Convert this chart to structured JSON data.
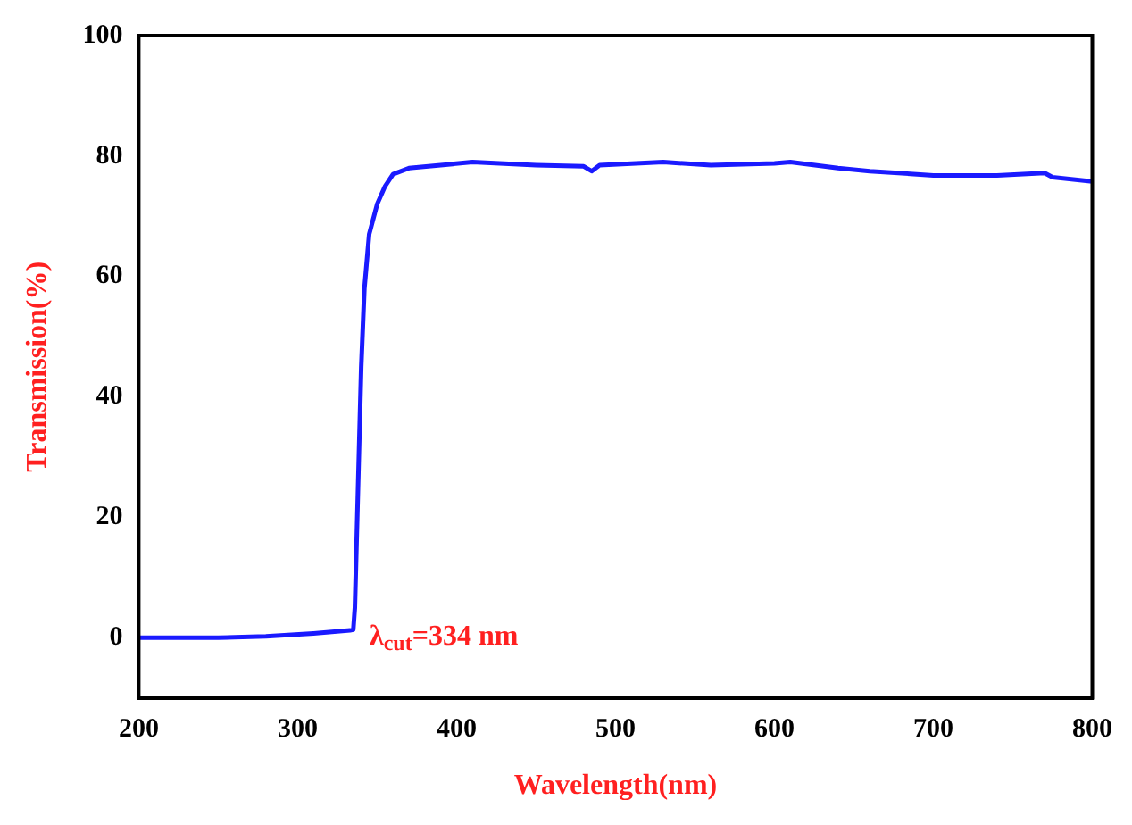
{
  "chart_data": {
    "type": "line",
    "xlabel": "Wavelength(nm)",
    "ylabel": "Transmission(%)",
    "x": [
      200,
      250,
      280,
      310,
      333,
      335,
      336,
      338,
      340,
      342,
      345,
      350,
      355,
      360,
      370,
      390,
      410,
      450,
      480,
      485,
      490,
      530,
      560,
      600,
      610,
      640,
      660,
      700,
      740,
      770,
      775,
      800
    ],
    "series": [
      {
        "color": "#1a1aff",
        "values": [
          0,
          0,
          0.2,
          0.7,
          1.2,
          1.3,
          5,
          25,
          45,
          58,
          67,
          72,
          75,
          77,
          78,
          78.5,
          79,
          78.5,
          78.3,
          77.5,
          78.5,
          79,
          78.5,
          78.8,
          79,
          78,
          77.5,
          76.8,
          76.8,
          77.2,
          76.5,
          75.8
        ]
      }
    ],
    "xlim": [
      200,
      800
    ],
    "xticks": [
      200,
      300,
      400,
      500,
      600,
      700,
      800
    ],
    "ylim": [
      -10,
      100
    ],
    "yticks": [
      0,
      20,
      40,
      60,
      80,
      100
    ],
    "grid": false,
    "legend": false,
    "marker": "none",
    "line_style": "solid",
    "annotations": [
      {
        "text": "λ$_{cut}$=334 nm",
        "x": 334,
        "y": 0
      }
    ]
  }
}
